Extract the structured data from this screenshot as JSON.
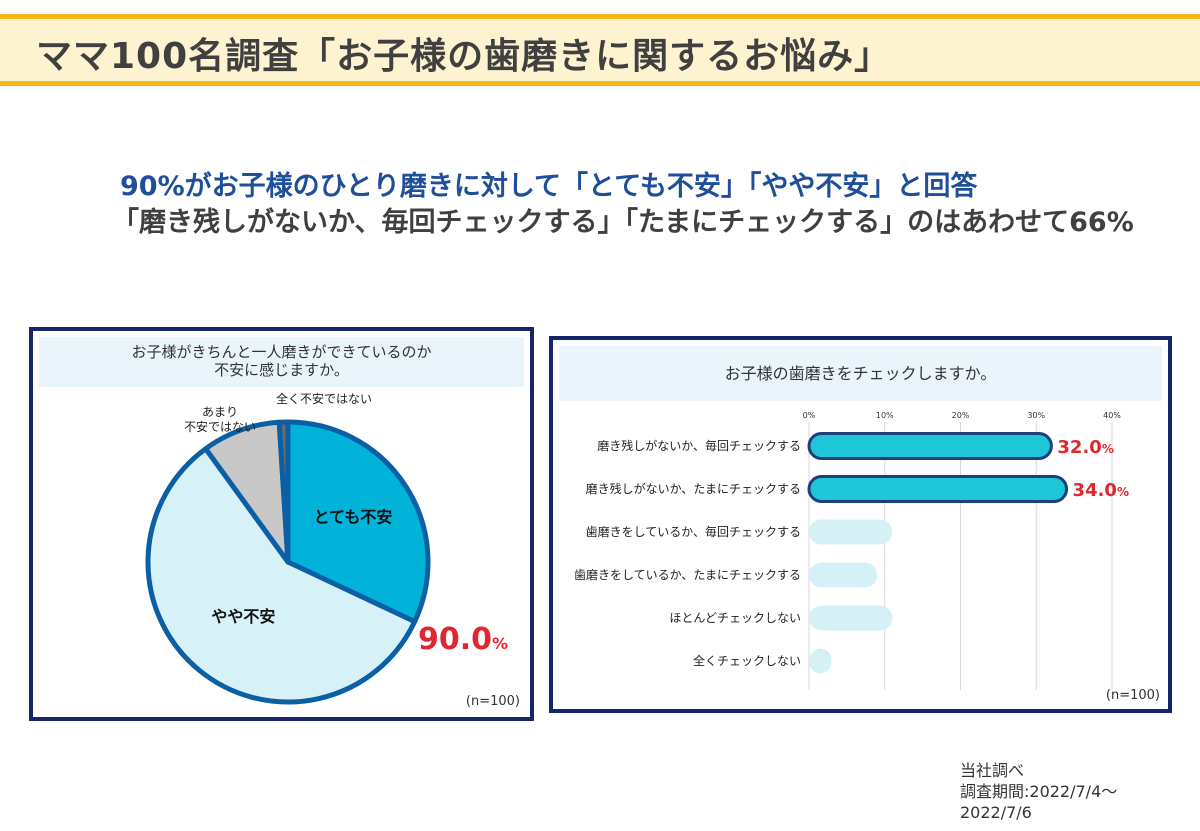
{
  "title": "ママ100名調査「お子様の歯磨きに関するお悩み」",
  "headline1": "90%がお子様のひとり磨きに対して「とても不安」「やや不安」と回答",
  "headline2": "「磨き残しがないか、毎回チェックする」「たまにチェックする」のはあわせて66%",
  "colors": {
    "title_band_border": "#f6b615",
    "title_band_fill": "#fdf3d0",
    "headline_blue": "#1f4e9a",
    "panel_border": "#17236b",
    "pie_very": "#02b3d9",
    "pie_somewhat": "#d6f1f8",
    "pie_notmuch": "#c8c8c8",
    "pie_none": "#6b6b6b",
    "bar_highlight": "#1fc6d8",
    "bar_light": "#d6f1f6",
    "callout_red": "#e0262e"
  },
  "chart_data": [
    {
      "type": "pie",
      "question": [
        "お子様がきちんと一人磨きができているのか",
        "不安に感じますか。"
      ],
      "slices": [
        {
          "label": "とても不安",
          "value": 32
        },
        {
          "label": "やや不安",
          "value": 58
        },
        {
          "label": [
            "あまり",
            "不安ではない"
          ],
          "value": 9
        },
        {
          "label": "全く不安ではない",
          "value": 1
        }
      ],
      "callout_number": "90.0",
      "callout_unit": "%",
      "n": "(n=100)"
    },
    {
      "type": "bar",
      "orientation": "horizontal",
      "question": "お子様の歯磨きをチェックしますか。",
      "categories": [
        "磨き残しがないか、毎回チェックする",
        "磨き残しがないか、たまにチェックする",
        "歯磨きをしているか、毎回チェックする",
        "歯磨きをしているか、たまにチェックする",
        "ほとんどチェックしない",
        "全くチェックしない"
      ],
      "values": [
        32,
        34,
        11,
        9,
        11,
        3
      ],
      "highlight": [
        true,
        true,
        false,
        false,
        false,
        false
      ],
      "data_labels": [
        {
          "number": "32.0",
          "unit": "%"
        },
        {
          "number": "34.0",
          "unit": "%"
        },
        null,
        null,
        null,
        null
      ],
      "xlim": [
        0,
        40
      ],
      "ticks": [
        "0%",
        "10%",
        "20%",
        "30%",
        "40%"
      ],
      "grid": true,
      "n": "(n=100)"
    }
  ],
  "source": [
    "当社調べ",
    "調査期間:2022/7/4～",
    "2022/7/6"
  ]
}
